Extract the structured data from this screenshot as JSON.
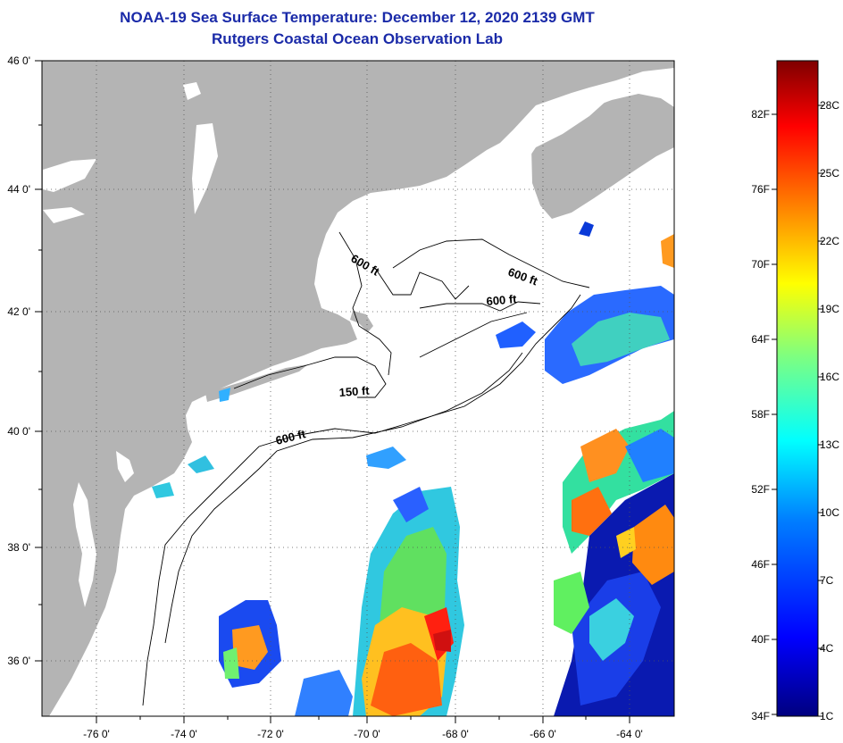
{
  "title": {
    "line1": "NOAA-19 Sea Surface Temperature:  December 12, 2020 2139 GMT",
    "line2": "Rutgers Coastal Ocean Observation Lab"
  },
  "map": {
    "lon_labels": [
      "-76 0'",
      "-74 0'",
      "-72 0'",
      "-70 0'",
      "-68 0'",
      "-66 0'",
      "-64 0'"
    ],
    "lat_labels": [
      "46 0'",
      "44 0'",
      "42 0'",
      "40 0'",
      "38 0'",
      "36 0'"
    ],
    "contour_labels": [
      "600 ft",
      "600 ft",
      "600 ft",
      "150 ft",
      "600 ft"
    ],
    "land_color": "#b4b4b4",
    "ocean_color": "#ffffff"
  },
  "colorbar": {
    "fahrenheit_labels": [
      "82F",
      "76F",
      "70F",
      "64F",
      "58F",
      "52F",
      "46F",
      "40F",
      "34F"
    ],
    "celsius_labels": [
      "28C",
      "25C",
      "22C",
      "19C",
      "16C",
      "13C",
      "10C",
      "7C",
      "4C",
      "1C"
    ],
    "colors": [
      "#00007f",
      "#0000ff",
      "#007fff",
      "#00ffff",
      "#7fff7f",
      "#ffff00",
      "#ff7f00",
      "#ff0000",
      "#7f0000"
    ]
  }
}
